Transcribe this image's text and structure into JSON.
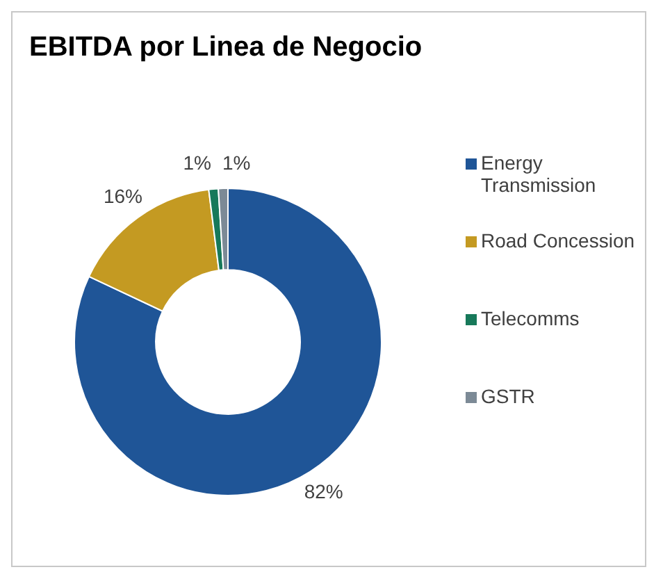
{
  "chart_data": {
    "type": "donut",
    "title": "EBITDA por Linea de Negocio",
    "categories": [
      "Energy Transmission",
      "Road Concession",
      "Telecomms",
      "GSTR"
    ],
    "values": [
      82,
      16,
      1,
      1
    ],
    "colors": [
      "#1f5597",
      "#c49a22",
      "#17795a",
      "#7c8a96"
    ],
    "value_labels": [
      "82%",
      "16%",
      "1%",
      "1%"
    ],
    "legend": "right"
  }
}
